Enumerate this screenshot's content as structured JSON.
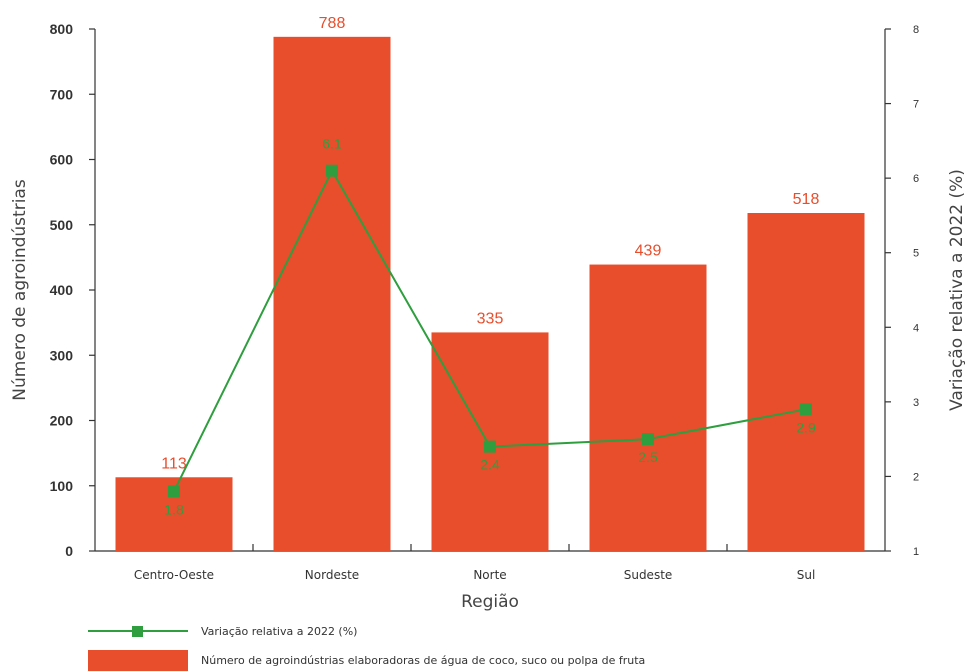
{
  "chart_data": {
    "type": "bar",
    "title": "",
    "xlabel": "Região",
    "ylabel": "Número de agroindústrias",
    "y2label": "Variação relativa a 2022 (%)",
    "ylim": [
      0,
      800
    ],
    "y2lim": [
      1,
      8
    ],
    "yticks": [
      "0",
      "100",
      "200",
      "300",
      "400",
      "500",
      "600",
      "700",
      "800"
    ],
    "y2ticks": [
      "1",
      "2",
      "3",
      "4",
      "5",
      "6",
      "7",
      "8"
    ],
    "categories": [
      "Centro-Oeste",
      "Nordeste",
      "Norte",
      "Sudeste",
      "Sul"
    ],
    "series": [
      {
        "name": "Número de agroindústrias elaboradoras de água de coco, suco ou polpa de fruta",
        "type": "bar",
        "axis": "left",
        "values": [
          113,
          788,
          335,
          439,
          518
        ],
        "labels": [
          "113",
          "788",
          "335",
          "439",
          "518"
        ]
      },
      {
        "name": "Variação relativa a 2022 (%)",
        "type": "line",
        "axis": "right",
        "values": [
          1.8,
          6.1,
          2.4,
          2.5,
          2.9
        ],
        "labels": [
          "1.8",
          "6.1",
          "2.4",
          "2.5",
          "2.9"
        ]
      }
    ],
    "legend_position": "bottom-left",
    "grid": false,
    "colors": {
      "bar": "#e84e2c",
      "bar_label": "#e84e2c",
      "line": "#2e9e3e",
      "marker": "#2e9e3e",
      "axis": "#333333"
    }
  }
}
